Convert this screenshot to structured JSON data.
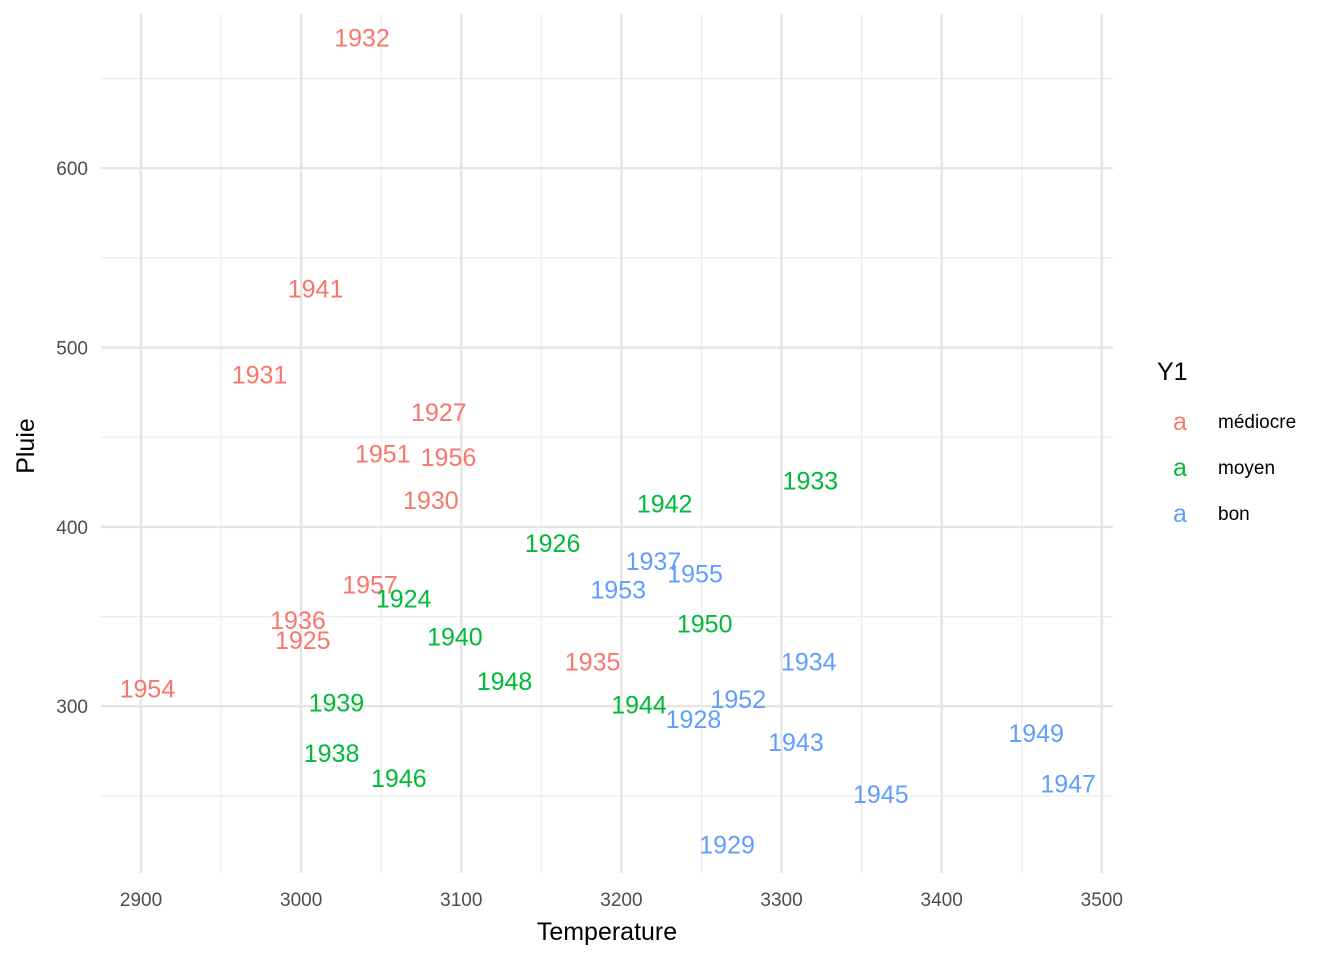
{
  "chart_data": {
    "type": "scatter",
    "xlabel": "Temperature",
    "ylabel": "Pluie",
    "xlim": [
      2875,
      3507
    ],
    "ylim": [
      207,
      686
    ],
    "x_ticks": [
      2900,
      3000,
      3100,
      3200,
      3300,
      3400,
      3500
    ],
    "y_ticks": [
      300,
      400,
      500,
      600
    ],
    "grid": true,
    "legend": {
      "title": "Y1",
      "position": "right",
      "key_glyph": "a",
      "entries": [
        {
          "name": "médiocre",
          "color": "#F8766D"
        },
        {
          "name": "moyen",
          "color": "#00BA38"
        },
        {
          "name": "bon",
          "color": "#619CFF"
        }
      ]
    },
    "series": [
      {
        "name": "médiocre",
        "color": "#F8766D",
        "points": [
          {
            "label": "1932",
            "x": 3038,
            "y": 673
          },
          {
            "label": "1941",
            "x": 3009,
            "y": 533
          },
          {
            "label": "1931",
            "x": 2974,
            "y": 485
          },
          {
            "label": "1927",
            "x": 3086,
            "y": 464
          },
          {
            "label": "1951",
            "x": 3051,
            "y": 441
          },
          {
            "label": "1956",
            "x": 3092,
            "y": 439
          },
          {
            "label": "1930",
            "x": 3081,
            "y": 415
          },
          {
            "label": "1957",
            "x": 3043,
            "y": 368
          },
          {
            "label": "1936",
            "x": 2998,
            "y": 348
          },
          {
            "label": "1925",
            "x": 3001,
            "y": 337
          },
          {
            "label": "1935",
            "x": 3182,
            "y": 325
          },
          {
            "label": "1954",
            "x": 2904,
            "y": 310
          }
        ]
      },
      {
        "name": "moyen",
        "color": "#00BA38",
        "points": [
          {
            "label": "1933",
            "x": 3318,
            "y": 426
          },
          {
            "label": "1942",
            "x": 3227,
            "y": 413
          },
          {
            "label": "1926",
            "x": 3157,
            "y": 391
          },
          {
            "label": "1924",
            "x": 3064,
            "y": 360
          },
          {
            "label": "1950",
            "x": 3252,
            "y": 346
          },
          {
            "label": "1940",
            "x": 3096,
            "y": 339
          },
          {
            "label": "1948",
            "x": 3127,
            "y": 314
          },
          {
            "label": "1939",
            "x": 3022,
            "y": 302
          },
          {
            "label": "1944",
            "x": 3211,
            "y": 301
          },
          {
            "label": "1938",
            "x": 3019,
            "y": 274
          },
          {
            "label": "1946",
            "x": 3061,
            "y": 260
          }
        ]
      },
      {
        "name": "bon",
        "color": "#619CFF",
        "points": [
          {
            "label": "1937",
            "x": 3220,
            "y": 381
          },
          {
            "label": "1955",
            "x": 3246,
            "y": 374
          },
          {
            "label": "1953",
            "x": 3198,
            "y": 365
          },
          {
            "label": "1934",
            "x": 3317,
            "y": 325
          },
          {
            "label": "1952",
            "x": 3273,
            "y": 304
          },
          {
            "label": "1928",
            "x": 3245,
            "y": 293
          },
          {
            "label": "1949",
            "x": 3459,
            "y": 285
          },
          {
            "label": "1943",
            "x": 3309,
            "y": 280
          },
          {
            "label": "1947",
            "x": 3479,
            "y": 257
          },
          {
            "label": "1945",
            "x": 3362,
            "y": 251
          },
          {
            "label": "1929",
            "x": 3266,
            "y": 223
          }
        ]
      }
    ]
  }
}
